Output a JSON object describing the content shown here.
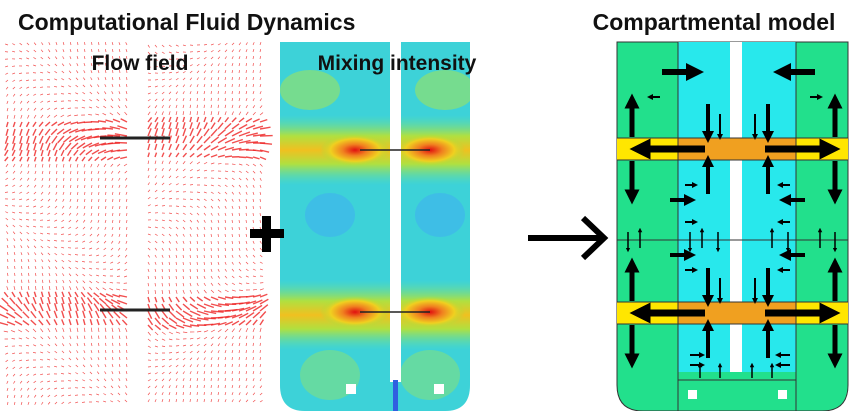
{
  "header": {
    "title": "Computational Fluid Dynamics"
  },
  "panels": [
    {
      "label": "Flow field"
    },
    {
      "label": "Mixing intensity"
    },
    {
      "label": "Compartmental model"
    }
  ]
}
